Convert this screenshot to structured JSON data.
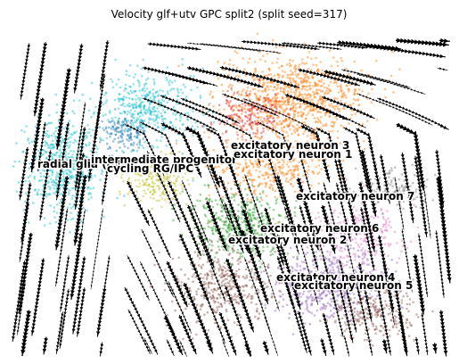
{
  "chart_data": {
    "type": "scatter",
    "subtype": "rna-velocity-stream-embedding",
    "title": "Velocity glf+utv GPC split2 (split seed=317)",
    "axes_visible": false,
    "grid": false,
    "legend": "on data",
    "stream_color": "#000000",
    "clusters": [
      {
        "name": "radial glia (oRG)",
        "color": "#17becf"
      },
      {
        "name": "intermediate progenitor",
        "color": "#bcbd22"
      },
      {
        "name": "cycling RG/IPC",
        "color": "#1f77b4"
      },
      {
        "name": "excitatory neuron 1",
        "color": "#ff7f0e"
      },
      {
        "name": "excitatory neuron 2",
        "color": "#2ca02c"
      },
      {
        "name": "excitatory neuron 3",
        "color": "#d62728"
      },
      {
        "name": "excitatory neuron 4",
        "color": "#9467bd"
      },
      {
        "name": "excitatory neuron 5",
        "color": "#8c564b"
      },
      {
        "name": "excitatory neuron 6",
        "color": "#e377c2"
      },
      {
        "name": "excitatory neuron 7",
        "color": "#7f7f7f"
      }
    ]
  }
}
